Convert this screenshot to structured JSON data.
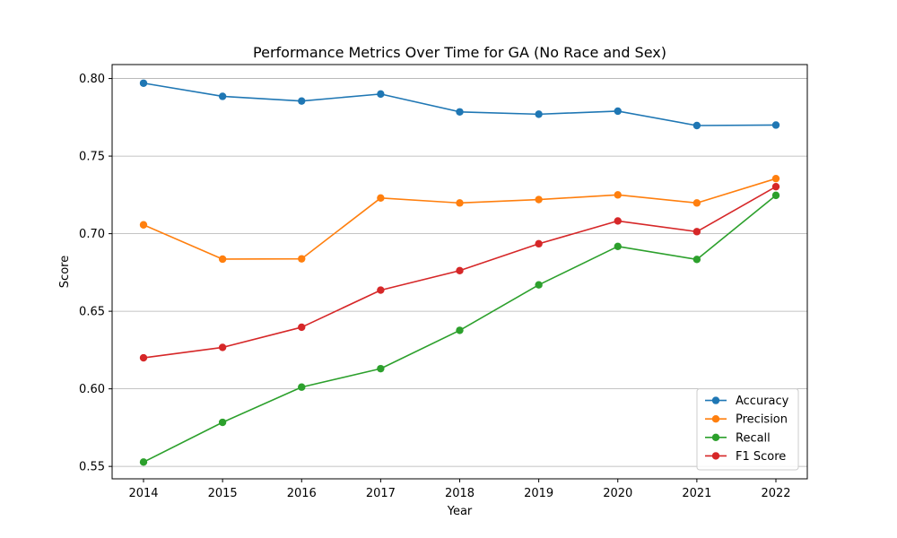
{
  "chart_data": {
    "type": "line",
    "title": "Performance Metrics Over Time for GA (No Race and Sex)",
    "xlabel": "Year",
    "ylabel": "Score",
    "x": [
      2014,
      2015,
      2016,
      2017,
      2018,
      2019,
      2020,
      2021,
      2022
    ],
    "x_tick_labels": [
      "2014",
      "2015",
      "2016",
      "2017",
      "2018",
      "2019",
      "2020",
      "2021",
      "2022"
    ],
    "ylim": [
      0.542,
      0.809
    ],
    "y_ticks": [
      0.55,
      0.6,
      0.65,
      0.7,
      0.75,
      0.8
    ],
    "y_tick_labels": [
      "0.55",
      "0.60",
      "0.65",
      "0.70",
      "0.75",
      "0.80"
    ],
    "grid": "horizontal",
    "legend_position": "lower-right",
    "series": [
      {
        "name": "Accuracy",
        "color": "#1f77b4",
        "values": [
          0.797,
          0.7885,
          0.7855,
          0.79,
          0.7785,
          0.777,
          0.779,
          0.7697,
          0.77
        ]
      },
      {
        "name": "Precision",
        "color": "#ff7f0e",
        "values": [
          0.7057,
          0.6836,
          0.6838,
          0.723,
          0.7198,
          0.722,
          0.725,
          0.7198,
          0.7355
        ]
      },
      {
        "name": "Recall",
        "color": "#2ca02c",
        "values": [
          0.5528,
          0.5784,
          0.6011,
          0.613,
          0.6377,
          0.667,
          0.6918,
          0.6834,
          0.7247
        ]
      },
      {
        "name": "F1 Score",
        "color": "#d62728",
        "values": [
          0.62,
          0.6267,
          0.6397,
          0.6636,
          0.6762,
          0.6935,
          0.7082,
          0.7013,
          0.7303
        ]
      }
    ]
  }
}
